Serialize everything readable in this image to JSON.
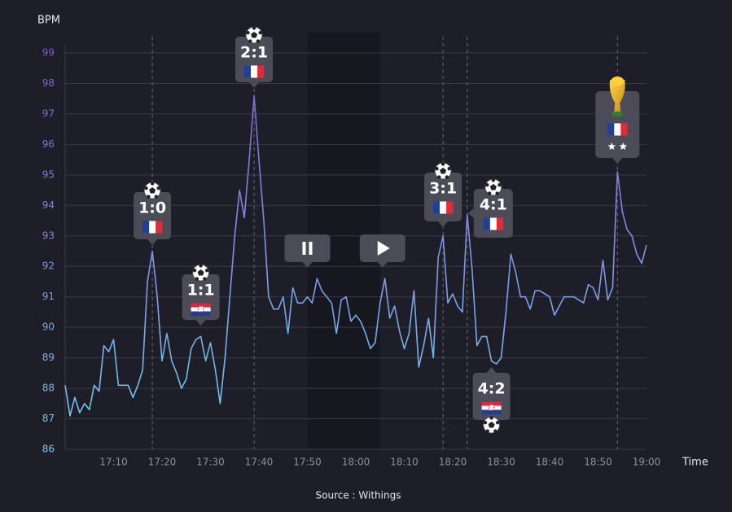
{
  "chart_data": {
    "type": "line",
    "y_label": "BPM",
    "x_label": "Time",
    "source": "Source : Withings",
    "color": "url(#lineGrad)",
    "grid": true,
    "x": [
      "17:00",
      "17:01",
      "17:02",
      "17:03",
      "17:04",
      "17:05",
      "17:06",
      "17:07",
      "17:08",
      "17:09",
      "17:10",
      "17:11",
      "17:12",
      "17:13",
      "17:14",
      "17:15",
      "17:16",
      "17:17",
      "17:18",
      "17:19",
      "17:20",
      "17:21",
      "17:22",
      "17:23",
      "17:24",
      "17:25",
      "17:26",
      "17:27",
      "17:28",
      "17:29",
      "17:30",
      "17:31",
      "17:32",
      "17:33",
      "17:34",
      "17:35",
      "17:36",
      "17:37",
      "17:38",
      "17:39",
      "17:40",
      "17:41",
      "17:42",
      "17:43",
      "17:44",
      "17:45",
      "17:46",
      "17:47",
      "17:48",
      "17:49",
      "17:50",
      "17:51",
      "17:52",
      "17:53",
      "17:54",
      "17:55",
      "17:56",
      "17:57",
      "17:58",
      "17:59",
      "18:00",
      "18:01",
      "18:02",
      "18:03",
      "18:04",
      "18:05",
      "18:06",
      "18:07",
      "18:08",
      "18:09",
      "18:10",
      "18:11",
      "18:12",
      "18:13",
      "18:14",
      "18:15",
      "18:16",
      "18:17",
      "18:18",
      "18:19",
      "18:20",
      "18:21",
      "18:22",
      "18:23",
      "18:24",
      "18:25",
      "18:26",
      "18:27",
      "18:28",
      "18:29",
      "18:30",
      "18:31",
      "18:32",
      "18:33",
      "18:34",
      "18:35",
      "18:36",
      "18:37",
      "18:38",
      "18:39",
      "18:40",
      "18:41",
      "18:42",
      "18:43",
      "18:44",
      "18:45",
      "18:46",
      "18:47",
      "18:48",
      "18:49",
      "18:50",
      "18:51",
      "18:52",
      "18:53",
      "18:54",
      "18:55",
      "18:56",
      "18:57",
      "18:58",
      "18:59",
      "19:00"
    ],
    "values": [
      88.1,
      87.1,
      87.7,
      87.2,
      87.5,
      87.3,
      88.1,
      87.9,
      89.4,
      89.2,
      89.6,
      88.1,
      88.1,
      88.1,
      87.7,
      88.1,
      88.6,
      91.5,
      92.5,
      91.0,
      88.9,
      89.8,
      88.9,
      88.5,
      88.0,
      88.3,
      89.3,
      89.6,
      89.7,
      88.9,
      89.5,
      88.6,
      87.5,
      89.0,
      91.0,
      93.0,
      94.5,
      93.6,
      95.5,
      97.6,
      95.5,
      93.5,
      91.0,
      90.6,
      90.6,
      91.0,
      89.8,
      91.3,
      90.8,
      90.8,
      91.0,
      90.8,
      91.6,
      91.2,
      91.0,
      90.8,
      89.8,
      90.9,
      91.0,
      90.2,
      90.4,
      90.2,
      89.8,
      89.3,
      89.5,
      90.8,
      91.6,
      90.3,
      90.7,
      89.9,
      89.3,
      89.8,
      91.2,
      88.7,
      89.4,
      90.3,
      89.0,
      92.3,
      93.0,
      90.8,
      91.1,
      90.7,
      90.5,
      93.7,
      91.9,
      89.4,
      89.7,
      89.7,
      88.9,
      88.8,
      89.0,
      90.5,
      92.4,
      91.8,
      91.0,
      91.0,
      90.6,
      91.2,
      91.2,
      91.1,
      91.0,
      90.4,
      90.7,
      91.0,
      91.0,
      91.0,
      90.9,
      90.8,
      91.4,
      91.3,
      90.9,
      92.2,
      90.9,
      91.3,
      95.1,
      93.8,
      93.2,
      93.0,
      92.4,
      92.1,
      92.7
    ],
    "xlim": [
      "17:00",
      "19:00"
    ],
    "xticks": [
      "17:10",
      "17:20",
      "17:30",
      "17:40",
      "17:50",
      "18:00",
      "18:10",
      "18:20",
      "18:30",
      "18:40",
      "18:50",
      "19:00"
    ],
    "ylim": [
      86,
      99
    ],
    "yticks": [
      86,
      87,
      88,
      89,
      90,
      91,
      92,
      93,
      94,
      95,
      96,
      97,
      98,
      99
    ],
    "shade": [
      "17:50",
      "18:05"
    ],
    "markers": [
      "17:18",
      "17:39",
      "18:18",
      "18:23",
      "18:54"
    ],
    "annotations": [
      {
        "x": "17:18",
        "text": "1:0"
      },
      {
        "x": "17:28",
        "text": "1:1"
      },
      {
        "x": "17:39",
        "text": "2:1"
      },
      {
        "x": "17:50",
        "icon": "pause"
      },
      {
        "x": "18:05",
        "icon": "play"
      },
      {
        "x": "18:18",
        "text": "3:1"
      },
      {
        "x": "18:23",
        "text": "4:1"
      },
      {
        "x": "18:28",
        "text": "4:2"
      },
      {
        "x": "18:54",
        "icon": "trophy"
      }
    ]
  }
}
